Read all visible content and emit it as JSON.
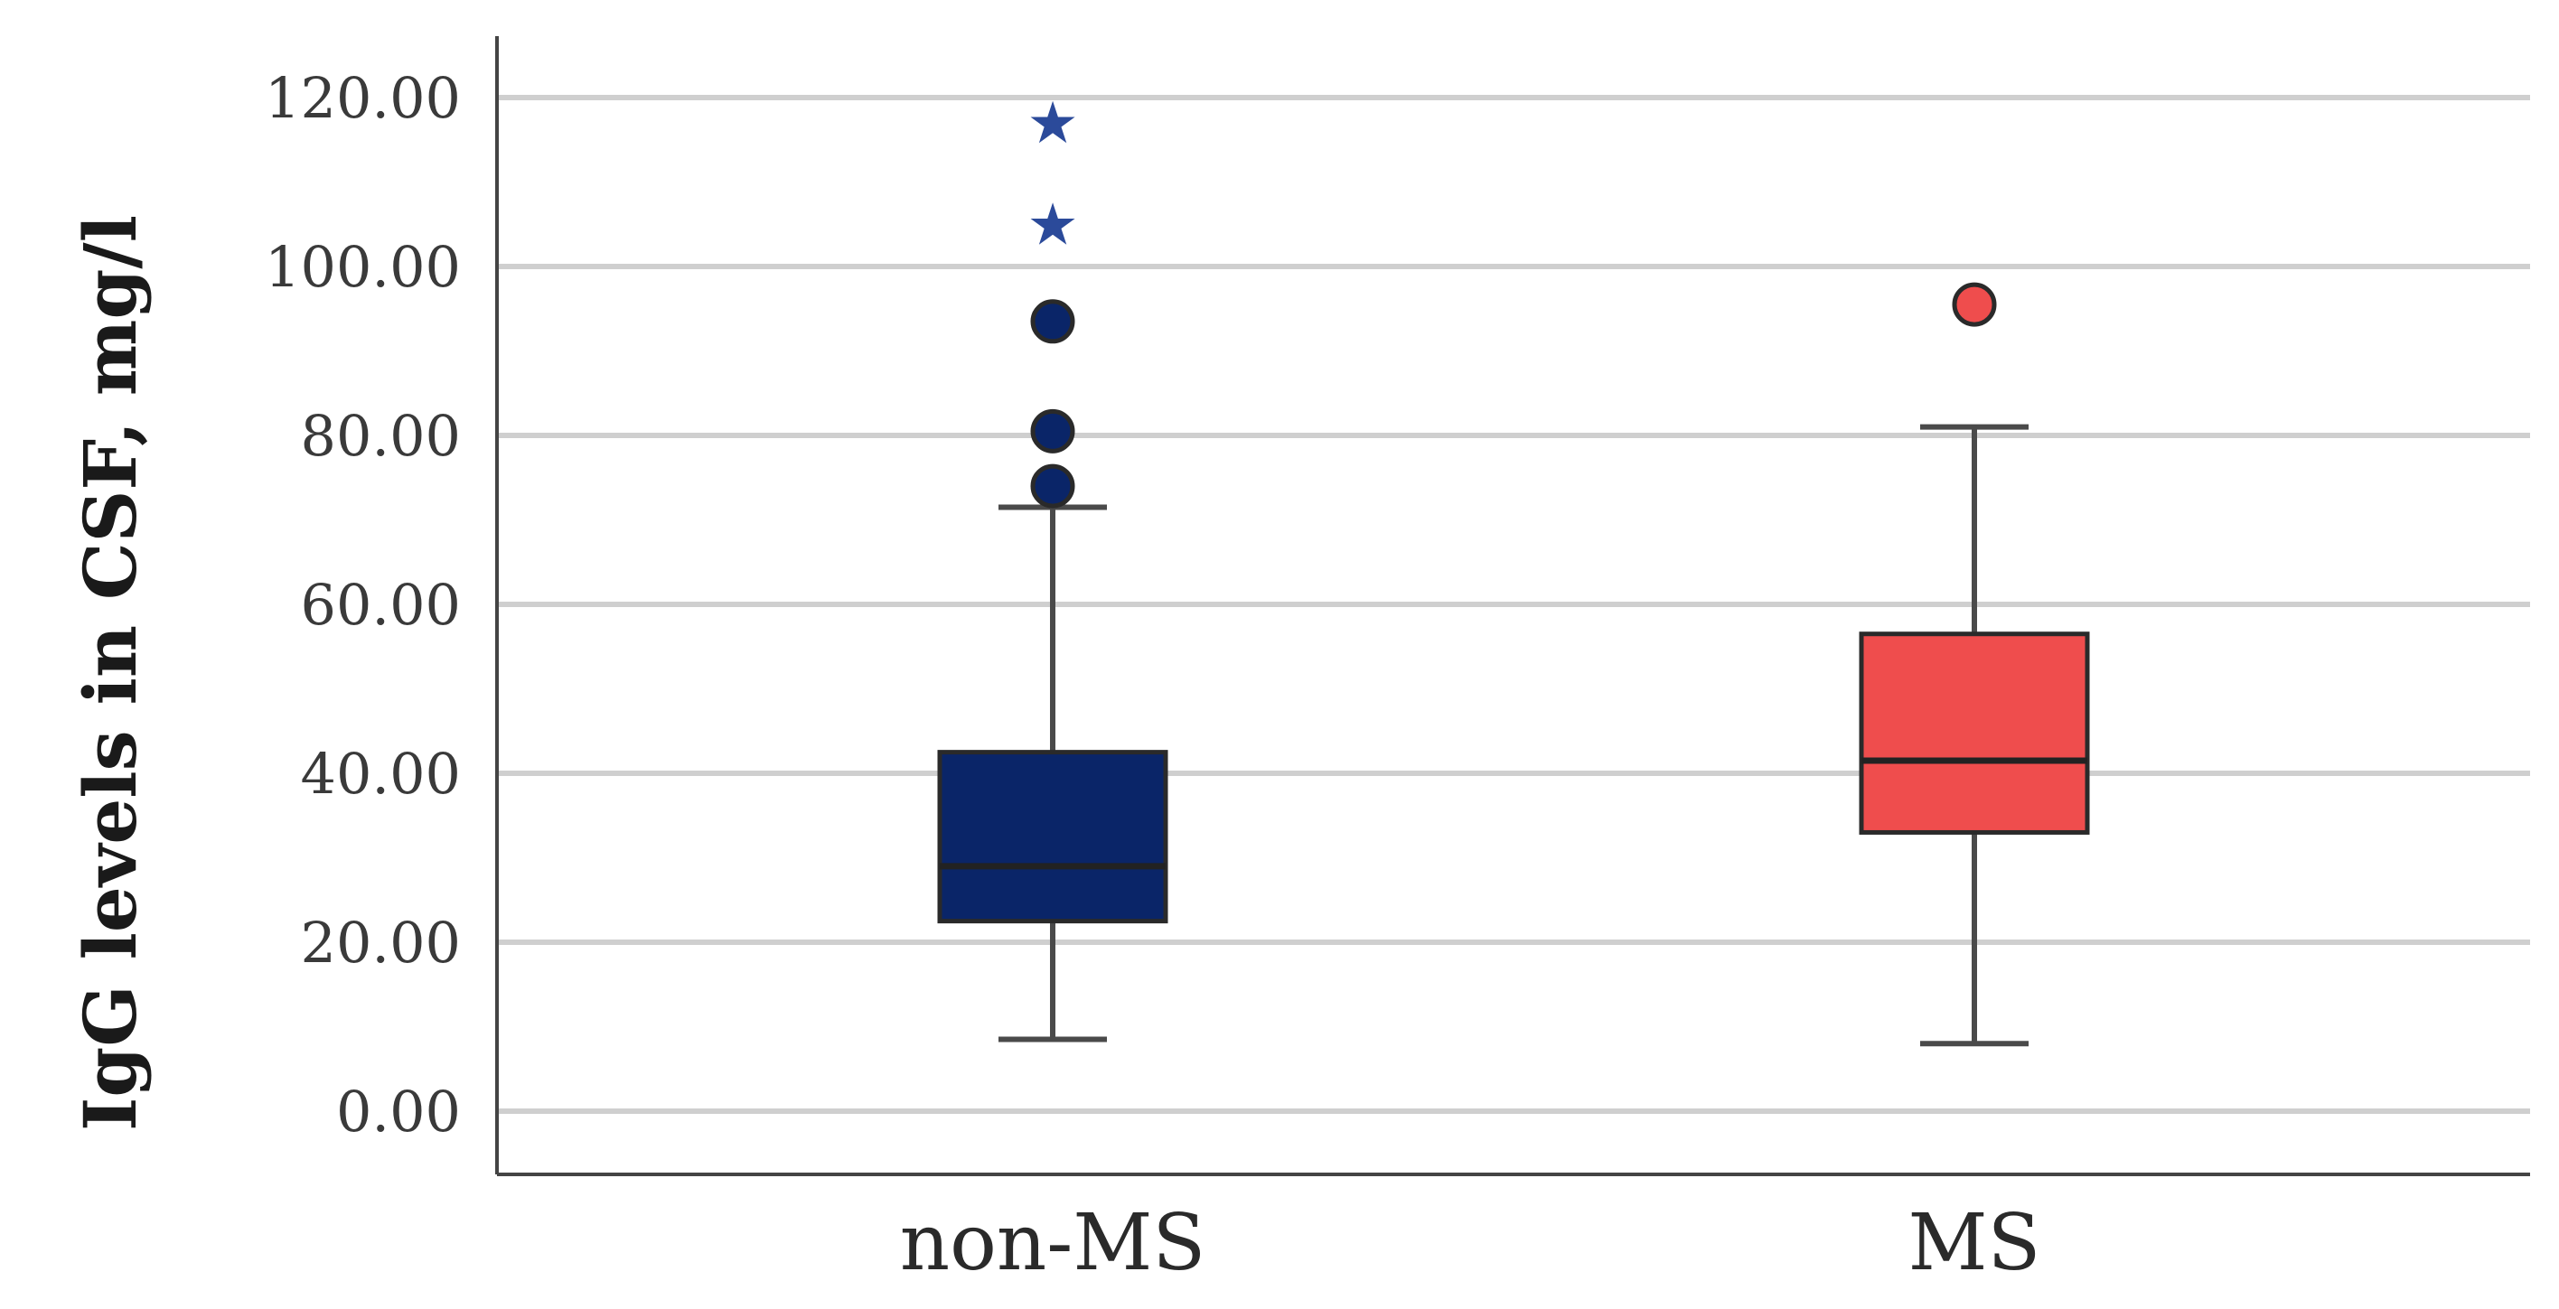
{
  "chart_data": {
    "type": "box",
    "ylabel": "IgG levels in CSF, mg/l",
    "ylim": [
      -7,
      126
    ],
    "yticks": [
      0,
      20,
      40,
      60,
      80,
      100,
      120
    ],
    "ytick_labels": [
      "0.00",
      "20.00",
      "40.00",
      "60.00",
      "80.00",
      "100.00",
      "120.00"
    ],
    "grid": true,
    "categories": [
      "non-MS",
      "MS"
    ],
    "boxes": [
      {
        "category": "non-MS",
        "color": "#0a2568",
        "whisker_low": 8.5,
        "q1": 22.5,
        "median": 29,
        "q3": 42.5,
        "whisker_high": 71.5,
        "outliers": [
          74,
          80.5,
          93.5
        ],
        "extremes": [
          105,
          117
        ]
      },
      {
        "category": "MS",
        "color": "#ef4d4d",
        "whisker_low": 8,
        "q1": 33,
        "median": 41.5,
        "q3": 56.5,
        "whisker_high": 81,
        "outliers": [
          95.5
        ],
        "extremes": []
      }
    ]
  }
}
